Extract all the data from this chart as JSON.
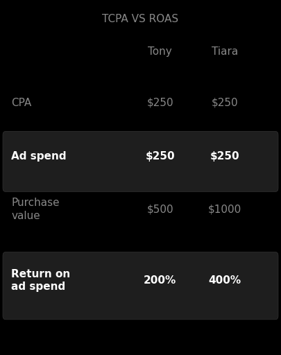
{
  "title": "TCPA VS ROAS",
  "background_color": "#000000",
  "columns": [
    "Tony",
    "Tiara"
  ],
  "rows": [
    {
      "label": "CPA",
      "values": [
        "$250",
        "$250"
      ],
      "highlighted": false,
      "label_color": "#888888",
      "value_color": "#888888",
      "label_bold": false
    },
    {
      "label": "Ad spend",
      "values": [
        "$250",
        "$250"
      ],
      "highlighted": true,
      "label_color": "#ffffff",
      "value_color": "#ffffff",
      "label_bold": true
    },
    {
      "label": "Purchase\nvalue",
      "values": [
        "$500",
        "$1000"
      ],
      "highlighted": false,
      "label_color": "#888888",
      "value_color": "#888888",
      "label_bold": false
    },
    {
      "label": "Return on\nad spend",
      "values": [
        "200%",
        "400%"
      ],
      "highlighted": true,
      "label_color": "#ffffff",
      "value_color": "#ffffff",
      "label_bold": true
    }
  ],
  "title_color": "#888888",
  "header_color": "#888888",
  "box_color": "#1e1e1e",
  "box_edge_color": "#333333"
}
